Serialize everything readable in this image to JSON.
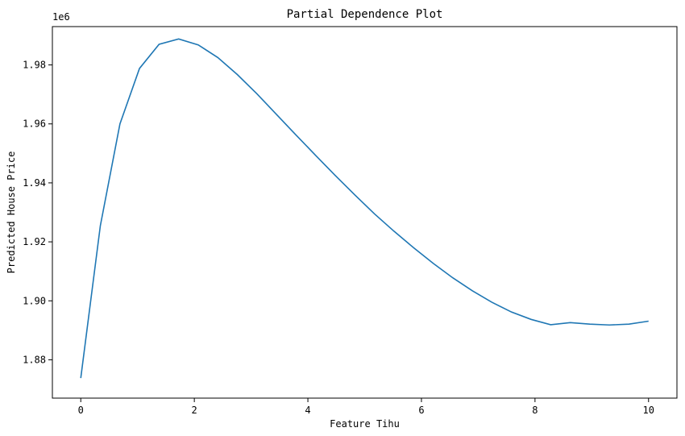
{
  "chart_data": {
    "type": "line",
    "title": "Partial Dependence Plot",
    "xlabel": "Feature Tihu",
    "ylabel": "Predicted House Price",
    "y_offset_label": "1e6",
    "xlim": [
      -0.5,
      10.5
    ],
    "ylim": [
      1.867,
      1.993
    ],
    "x_ticks": [
      0,
      2,
      4,
      6,
      8,
      10
    ],
    "y_ticks": [
      1.88,
      1.9,
      1.92,
      1.94,
      1.96,
      1.98
    ],
    "x_tick_labels": [
      "0",
      "2",
      "4",
      "6",
      "8",
      "10"
    ],
    "y_tick_labels": [
      "1.88",
      "1.90",
      "1.92",
      "1.94",
      "1.96",
      "1.98"
    ],
    "grid": false,
    "line_color": "#1f77b4",
    "series": [
      {
        "x": [
          0.0,
          0.345,
          0.69,
          1.034,
          1.379,
          1.724,
          2.069,
          2.414,
          2.759,
          3.103,
          3.448,
          3.793,
          4.138,
          4.483,
          4.828,
          5.172,
          5.517,
          5.862,
          6.207,
          6.552,
          6.897,
          7.241,
          7.586,
          7.931,
          8.276,
          8.621,
          8.966,
          9.31,
          9.655,
          10.0
        ],
        "y": [
          1.8738,
          1.9255,
          1.96,
          1.9788,
          1.987,
          1.9888,
          1.9868,
          1.9825,
          1.9767,
          1.9702,
          1.9632,
          1.9562,
          1.9493,
          1.9425,
          1.9359,
          1.9295,
          1.9236,
          1.918,
          1.9127,
          1.9078,
          1.9034,
          1.8995,
          1.8962,
          1.8937,
          1.8919,
          1.8926,
          1.8921,
          1.8918,
          1.8921,
          1.8931
        ]
      }
    ]
  }
}
